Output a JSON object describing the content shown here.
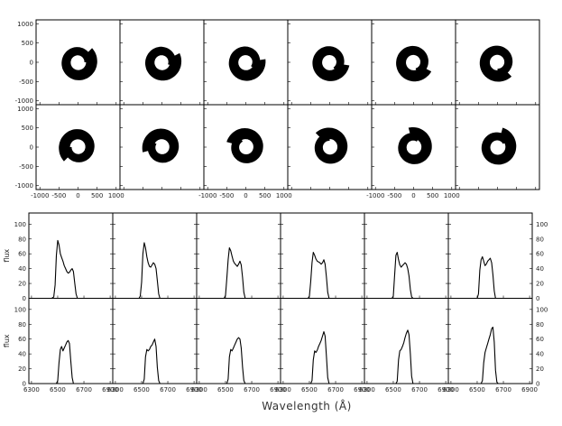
{
  "chart_data": [
    {
      "type": "image-grid",
      "rows": 2,
      "cols": 6,
      "x_ticks": [
        "-1000",
        "-500",
        "0",
        "500",
        "1000"
      ],
      "y_ticks": [
        "1000",
        "500",
        "0",
        "-500",
        "-1000"
      ],
      "xlim": [
        -1100,
        1100
      ],
      "ylim": [
        -1100,
        1100
      ],
      "orientations_deg": [
        0,
        -18,
        -36,
        -54,
        -72,
        -90,
        180,
        150,
        120,
        90,
        60,
        30
      ],
      "spiral_color": "#000000"
    },
    {
      "type": "line",
      "rows": 2,
      "cols": 6,
      "ylabel": "flux",
      "xlabel": "Wavelength (Å)",
      "x_ticks": [
        "6300",
        "6500",
        "6700",
        "6900"
      ],
      "y_ticks": [
        "0",
        "20",
        "40",
        "60",
        "80",
        "100"
      ],
      "xlim": [
        6280,
        6920
      ],
      "ylim": [
        0,
        115
      ],
      "x": [
        6440,
        6455,
        6470,
        6480,
        6490,
        6500,
        6510,
        6520,
        6530,
        6540,
        6550,
        6560,
        6570,
        6580,
        6590,
        6600,
        6610,
        6620,
        6630,
        6640,
        6650,
        6660,
        6670,
        6680,
        6690,
        6700
      ],
      "series": [
        {
          "values": [
            0,
            0,
            2,
            18,
            58,
            78,
            72,
            60,
            55,
            50,
            44,
            40,
            36,
            34,
            35,
            38,
            40,
            36,
            20,
            6,
            0,
            0,
            0,
            0,
            0,
            0
          ]
        },
        {
          "values": [
            0,
            0,
            0,
            0,
            3,
            22,
            60,
            75,
            68,
            56,
            48,
            43,
            42,
            45,
            48,
            46,
            40,
            24,
            6,
            0,
            0,
            0,
            0,
            0,
            0,
            0
          ]
        },
        {
          "values": [
            0,
            0,
            0,
            0,
            0,
            4,
            26,
            52,
            68,
            64,
            57,
            50,
            47,
            45,
            43,
            46,
            50,
            45,
            28,
            8,
            0,
            0,
            0,
            0,
            0,
            0
          ]
        },
        {
          "values": [
            0,
            0,
            0,
            0,
            0,
            3,
            22,
            48,
            62,
            58,
            53,
            50,
            49,
            48,
            46,
            48,
            52,
            46,
            28,
            8,
            0,
            0,
            0,
            0,
            0,
            0
          ]
        },
        {
          "values": [
            0,
            0,
            0,
            0,
            0,
            3,
            30,
            58,
            62,
            52,
            45,
            42,
            44,
            46,
            48,
            46,
            40,
            30,
            12,
            2,
            0,
            0,
            0,
            0,
            0,
            0
          ]
        },
        {
          "values": [
            0,
            0,
            0,
            0,
            0,
            0,
            6,
            38,
            52,
            56,
            50,
            44,
            46,
            50,
            52,
            54,
            48,
            32,
            10,
            0,
            0,
            0,
            0,
            0,
            0,
            0
          ]
        },
        {
          "values": [
            0,
            0,
            0,
            0,
            0,
            4,
            28,
            46,
            50,
            44,
            48,
            52,
            56,
            58,
            54,
            30,
            8,
            0,
            0,
            0,
            0,
            0,
            0,
            0,
            0,
            0
          ]
        },
        {
          "values": [
            0,
            0,
            0,
            0,
            0,
            0,
            0,
            6,
            36,
            46,
            44,
            46,
            50,
            52,
            56,
            60,
            50,
            22,
            4,
            0,
            0,
            0,
            0,
            0,
            0,
            0
          ]
        },
        {
          "values": [
            0,
            0,
            0,
            0,
            0,
            0,
            0,
            6,
            36,
            46,
            44,
            48,
            52,
            56,
            60,
            62,
            60,
            48,
            22,
            4,
            0,
            0,
            0,
            0,
            0,
            0
          ]
        },
        {
          "values": [
            0,
            0,
            0,
            0,
            0,
            0,
            0,
            4,
            32,
            44,
            42,
            45,
            50,
            54,
            58,
            64,
            70,
            64,
            36,
            8,
            0,
            0,
            0,
            0,
            0,
            0
          ]
        },
        {
          "values": [
            0,
            0,
            0,
            0,
            0,
            0,
            0,
            0,
            3,
            32,
            44,
            46,
            50,
            55,
            62,
            68,
            72,
            66,
            40,
            10,
            0,
            0,
            0,
            0,
            0,
            0
          ]
        },
        {
          "values": [
            0,
            0,
            0,
            0,
            0,
            0,
            0,
            0,
            0,
            4,
            28,
            42,
            48,
            54,
            60,
            66,
            74,
            76,
            56,
            18,
            2,
            0,
            0,
            0,
            0,
            0
          ]
        }
      ]
    }
  ]
}
